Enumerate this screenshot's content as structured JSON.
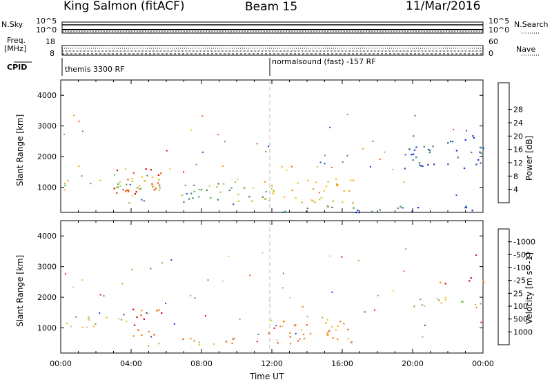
{
  "header": {
    "title": "King Salmon (fitACF)",
    "beam": "Beam 15",
    "date": "11/Mar/2016"
  },
  "strip_labels": {
    "nsky": "N.Sky",
    "nsky_ticks": [
      "10^5",
      "10^0"
    ],
    "nsearch": "N.Search",
    "nsearch_ticks": [
      "10^5",
      "10^0"
    ],
    "freq_line1": "Freq.",
    "freq_line2": "[MHz]",
    "freq_ticks": [
      "18",
      "8"
    ],
    "nave": "Nave",
    "nave_ticks": [
      "60",
      "0"
    ],
    "cpid": "CPID",
    "cpid_left": "themis 3300 RF",
    "cpid_right": "normalsound (fast) -157 RF"
  },
  "chart_data": [
    {
      "type": "heatmap",
      "panel": "power",
      "ylabel": "Slant Range [km]",
      "xlabel": "",
      "ylim": [
        180,
        4500
      ],
      "xlim_hours": [
        0,
        24
      ],
      "y_ticks": [
        1000,
        2000,
        3000,
        4000
      ],
      "colorbar_label": "Power [dB]",
      "colorbar_ticks": [
        "4",
        "8",
        "12",
        "16",
        "20",
        "24",
        "28"
      ],
      "colorbar_colors": [
        "#1e34e0",
        "#2a52b8",
        "#3f8c6a",
        "#5fb04a",
        "#b8c83a",
        "#f5c21c",
        "#f59a16",
        "#ee5a12",
        "#e00a0a"
      ],
      "regions": [
        {
          "t": [
            0.0,
            5.6
          ],
          "r": [
            900,
            1450
          ],
          "level": 4
        },
        {
          "t": [
            3.0,
            5.8
          ],
          "r": [
            700,
            1700
          ],
          "level": 7
        },
        {
          "t": [
            6.8,
            11.5
          ],
          "r": [
            500,
            1150
          ],
          "level": 3
        },
        {
          "t": [
            11.5,
            16.8
          ],
          "r": [
            500,
            1300
          ],
          "level": 5
        },
        {
          "t": [
            19.5,
            24.0
          ],
          "r": [
            1600,
            2700
          ],
          "level": 1
        },
        {
          "t": [
            12.0,
            24.0
          ],
          "r": [
            200,
            420
          ],
          "level": 1
        }
      ]
    },
    {
      "type": "heatmap",
      "panel": "velocity",
      "ylabel": "Slant Range [km]",
      "xlabel": "Time UT",
      "ylim": [
        180,
        4500
      ],
      "x_ticks": [
        "00:00",
        "04:00",
        "08:00",
        "12:00",
        "16:00",
        "20:00",
        "00:00"
      ],
      "y_ticks": [
        1000,
        2000,
        3000,
        4000
      ],
      "colorbar_label": "Velocity [m s^-1]",
      "colorbar_ticks": [
        "1000",
        "500",
        "100",
        "25",
        "-25",
        "-100",
        "-500",
        "-1000"
      ],
      "colorbar_colors": [
        "#1e34e0",
        "#2a52b8",
        "#3f8c6a",
        "#6cc04a",
        "#c0c0b8",
        "#f0c232",
        "#f08a1a",
        "#ee5a12",
        "#e00a0a"
      ],
      "regions": [
        {
          "t": [
            0.0,
            4.0
          ],
          "r": [
            1000,
            1400
          ],
          "level": 4
        },
        {
          "t": [
            4.0,
            5.8
          ],
          "r": [
            700,
            1700
          ],
          "level": 7
        },
        {
          "t": [
            6.8,
            11.0
          ],
          "r": [
            450,
            700
          ],
          "level": 6
        },
        {
          "t": [
            11.5,
            16.5
          ],
          "r": [
            500,
            1300
          ],
          "level": 6
        },
        {
          "t": [
            20.0,
            24.0
          ],
          "r": [
            1700,
            2100
          ],
          "level": 4
        },
        {
          "t": [
            21.5,
            24.0
          ],
          "r": [
            2400,
            2700
          ],
          "level": 7
        }
      ]
    }
  ]
}
